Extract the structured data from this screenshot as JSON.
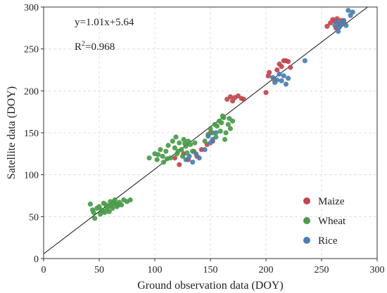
{
  "chart_data": {
    "type": "scatter",
    "title": "",
    "xlabel": "Ground observation data (DOY)",
    "ylabel": "Satellite data (DOY)",
    "xlim": [
      0,
      300
    ],
    "ylim": [
      0,
      300
    ],
    "xticks": [
      0,
      50,
      100,
      150,
      200,
      250,
      300
    ],
    "yticks": [
      0,
      50,
      100,
      150,
      200,
      250,
      300
    ],
    "grid": true,
    "legend_position": "bottom-right",
    "annotations": {
      "equation": "y=1.01x+5.64",
      "r2_prefix": "R",
      "r2_sup": "2",
      "r2_value": "=0.968"
    },
    "fit_line": {
      "slope": 1.01,
      "intercept": 5.64,
      "x_range": [
        0,
        300
      ]
    },
    "series": [
      {
        "name": "Maize",
        "color": "#c0474f",
        "points": [
          [
            118,
            120
          ],
          [
            122,
            112
          ],
          [
            126,
            125
          ],
          [
            130,
            118
          ],
          [
            135,
            128
          ],
          [
            138,
            122
          ],
          [
            142,
            130
          ],
          [
            147,
            136
          ],
          [
            150,
            150
          ],
          [
            152,
            140
          ],
          [
            165,
            190
          ],
          [
            168,
            193
          ],
          [
            170,
            188
          ],
          [
            172,
            192
          ],
          [
            175,
            194
          ],
          [
            178,
            191
          ],
          [
            180,
            190
          ],
          [
            200,
            198
          ],
          [
            202,
            218
          ],
          [
            203,
            222
          ],
          [
            207,
            214
          ],
          [
            210,
            225
          ],
          [
            212,
            232
          ],
          [
            214,
            229
          ],
          [
            216,
            236
          ],
          [
            218,
            236
          ],
          [
            220,
            235
          ],
          [
            222,
            228
          ],
          [
            255,
            277
          ],
          [
            258,
            281
          ],
          [
            260,
            285
          ],
          [
            262,
            283
          ],
          [
            264,
            286
          ],
          [
            266,
            280
          ],
          [
            268,
            284
          ],
          [
            270,
            282
          ],
          [
            263,
            275
          ]
        ]
      },
      {
        "name": "Wheat",
        "color": "#4a9a4a",
        "points": [
          [
            42,
            65
          ],
          [
            45,
            55
          ],
          [
            46,
            48
          ],
          [
            48,
            60
          ],
          [
            50,
            62
          ],
          [
            52,
            58
          ],
          [
            54,
            66
          ],
          [
            55,
            55
          ],
          [
            56,
            64
          ],
          [
            58,
            62
          ],
          [
            60,
            68
          ],
          [
            62,
            60
          ],
          [
            64,
            70
          ],
          [
            65,
            65
          ],
          [
            66,
            62
          ],
          [
            68,
            67
          ],
          [
            70,
            64
          ],
          [
            72,
            70
          ],
          [
            75,
            68
          ],
          [
            78,
            70
          ],
          [
            51,
            53
          ],
          [
            53,
            57
          ],
          [
            57,
            59
          ],
          [
            59,
            56
          ],
          [
            61,
            63
          ],
          [
            63,
            66
          ],
          [
            67,
            64
          ],
          [
            44,
            58
          ],
          [
            95,
            120
          ],
          [
            100,
            125
          ],
          [
            102,
            118
          ],
          [
            105,
            130
          ],
          [
            107,
            122
          ],
          [
            110,
            128
          ],
          [
            112,
            135
          ],
          [
            114,
            120
          ],
          [
            116,
            140
          ],
          [
            118,
            132
          ],
          [
            120,
            125
          ],
          [
            122,
            138
          ],
          [
            124,
            130
          ],
          [
            126,
            142
          ],
          [
            128,
            134
          ],
          [
            130,
            140
          ],
          [
            132,
            136
          ],
          [
            134,
            128
          ],
          [
            136,
            138
          ],
          [
            108,
            115
          ],
          [
            111,
            119
          ],
          [
            119,
            145
          ],
          [
            121,
            128
          ],
          [
            125,
            122
          ],
          [
            127,
            137
          ],
          [
            129,
            126
          ],
          [
            103,
            124
          ],
          [
            145,
            140
          ],
          [
            148,
            148
          ],
          [
            150,
            155
          ],
          [
            152,
            150
          ],
          [
            154,
            160
          ],
          [
            156,
            158
          ],
          [
            158,
            164
          ],
          [
            160,
            162
          ],
          [
            162,
            168
          ],
          [
            164,
            150
          ],
          [
            166,
            160
          ],
          [
            168,
            155
          ],
          [
            170,
            164
          ],
          [
            155,
            145
          ],
          [
            159,
            152
          ],
          [
            161,
            170
          ],
          [
            163,
            142
          ],
          [
            167,
            167
          ]
        ]
      },
      {
        "name": "Rice",
        "color": "#4a7fb0",
        "points": [
          [
            128,
            118
          ],
          [
            131,
            122
          ],
          [
            134,
            115
          ],
          [
            137,
            125
          ],
          [
            140,
            120
          ],
          [
            145,
            130
          ],
          [
            148,
            146
          ],
          [
            150,
            138
          ],
          [
            152,
            142
          ],
          [
            155,
            150
          ],
          [
            206,
            216
          ],
          [
            208,
            210
          ],
          [
            210,
            213
          ],
          [
            212,
            220
          ],
          [
            214,
            212
          ],
          [
            216,
            218
          ],
          [
            218,
            208
          ],
          [
            220,
            215
          ],
          [
            235,
            236
          ],
          [
            262,
            278
          ],
          [
            264,
            282
          ],
          [
            266,
            276
          ],
          [
            268,
            280
          ],
          [
            270,
            284
          ],
          [
            272,
            278
          ],
          [
            274,
            296
          ],
          [
            276,
            290
          ],
          [
            278,
            294
          ],
          [
            265,
            271
          ]
        ]
      }
    ]
  }
}
